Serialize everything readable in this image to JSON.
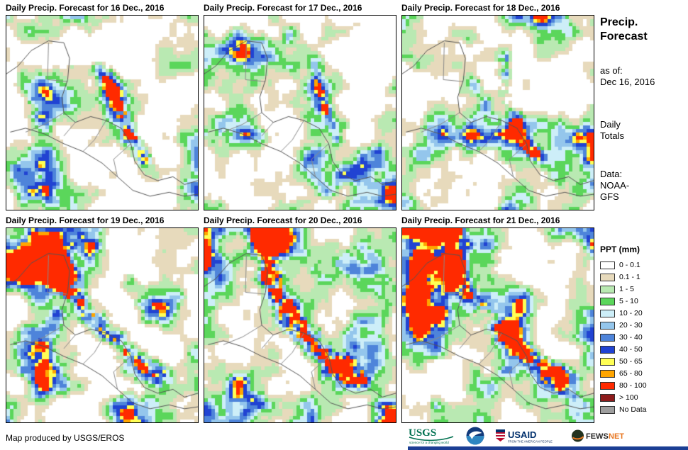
{
  "panels": [
    {
      "title": "Daily Precip. Forecast for 16 Dec., 2016"
    },
    {
      "title": "Daily Precip. Forecast for 17 Dec., 2016"
    },
    {
      "title": "Daily Precip. Forecast for 18 Dec., 2016"
    },
    {
      "title": "Daily Precip. Forecast for 19 Dec., 2016"
    },
    {
      "title": "Daily Precip. Forecast for 20 Dec., 2016"
    },
    {
      "title": "Daily Precip. Forecast for 21 Dec., 2016"
    }
  ],
  "sidebar": {
    "title_line1": "Precip.",
    "title_line2": "Forecast",
    "asof_label": "as of:",
    "asof_value": "Dec 16, 2016",
    "totals_line1": "Daily",
    "totals_line2": "Totals",
    "data_label": "Data:",
    "data_value_line1": "NOAA-",
    "data_value_line2": "GFS"
  },
  "legend": {
    "title": "PPT (mm)",
    "entries": [
      {
        "label": "0 - 0.1",
        "color": "#ffffff"
      },
      {
        "label": "0.1 - 1",
        "color": "#e7dabc"
      },
      {
        "label": "1 - 5",
        "color": "#b9e9b2"
      },
      {
        "label": "5 - 10",
        "color": "#5bd65b"
      },
      {
        "label": "10 - 20",
        "color": "#cdeef8"
      },
      {
        "label": "20 - 30",
        "color": "#94c6ec"
      },
      {
        "label": "30 - 40",
        "color": "#4e84da"
      },
      {
        "label": "40 - 50",
        "color": "#2143d2"
      },
      {
        "label": "50 - 65",
        "color": "#ffff55"
      },
      {
        "label": "65 - 80",
        "color": "#ffa500"
      },
      {
        "label": "80 - 100",
        "color": "#ff2a00"
      },
      {
        "label": "> 100",
        "color": "#8e1c1c"
      },
      {
        "label": "No Data",
        "color": "#9e9e9e"
      }
    ]
  },
  "footer": {
    "credit": "Map produced by USGS/EROS",
    "accent_color": "#1b3e94"
  },
  "logos": {
    "usgs": {
      "name": "USGS",
      "tagline": "science for a changing world"
    },
    "usaid": {
      "name": "USAID",
      "tagline": "FROM THE AMERICAN PEOPLE"
    },
    "fewsnet": {
      "name_primary": "FEWS",
      "name_secondary": "NET"
    }
  }
}
